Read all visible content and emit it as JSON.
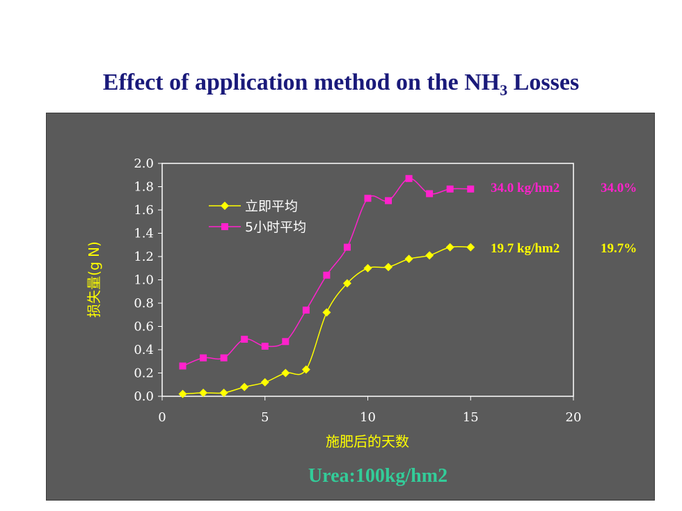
{
  "title": {
    "main": "Effect of application method on the NH",
    "sub": "3",
    "tail": " Losses"
  },
  "footer": "Urea:100kg/hm2",
  "colors": {
    "series1": "#ffff00",
    "series2": "#ff22cc",
    "panel": "#5a5a5a",
    "title": "#1a1a7a",
    "footer": "#33cc99"
  },
  "chart_data": {
    "type": "line",
    "xlabel": "施肥后的天数",
    "ylabel": "损失量(g N)",
    "xlim": [
      0,
      20
    ],
    "ylim": [
      0,
      2.0
    ],
    "xticks": [
      "0",
      "5",
      "10",
      "15",
      "20"
    ],
    "yticks": [
      "0.0",
      "0.2",
      "0.4",
      "0.6",
      "0.8",
      "1.0",
      "1.2",
      "1.4",
      "1.6",
      "1.8",
      "2.0"
    ],
    "legend_position": "top-left",
    "series": [
      {
        "name": "立即平均",
        "marker": "diamond",
        "color": "#ffff00",
        "x": [
          1,
          2,
          3,
          4,
          5,
          6,
          7,
          8,
          9,
          10,
          11,
          12,
          13,
          14,
          15
        ],
        "y": [
          0.02,
          0.03,
          0.03,
          0.08,
          0.12,
          0.2,
          0.23,
          0.72,
          0.97,
          1.1,
          1.11,
          1.18,
          1.21,
          1.28,
          1.28
        ]
      },
      {
        "name": "5小时平均",
        "marker": "square",
        "color": "#ff22cc",
        "x": [
          1,
          2,
          3,
          4,
          5,
          6,
          7,
          8,
          9,
          10,
          11,
          12,
          13,
          14,
          15
        ],
        "y": [
          0.26,
          0.33,
          0.33,
          0.49,
          0.43,
          0.47,
          0.74,
          1.04,
          1.28,
          1.7,
          1.68,
          1.87,
          1.74,
          1.78,
          1.78
        ]
      }
    ],
    "annotations": [
      {
        "text1": "34.0  kg/hm2",
        "text2": "34.0%",
        "color": "#ff22cc"
      },
      {
        "text1": "19.7 kg/hm2",
        "text2": "19.7%",
        "color": "#ffff00"
      }
    ]
  }
}
